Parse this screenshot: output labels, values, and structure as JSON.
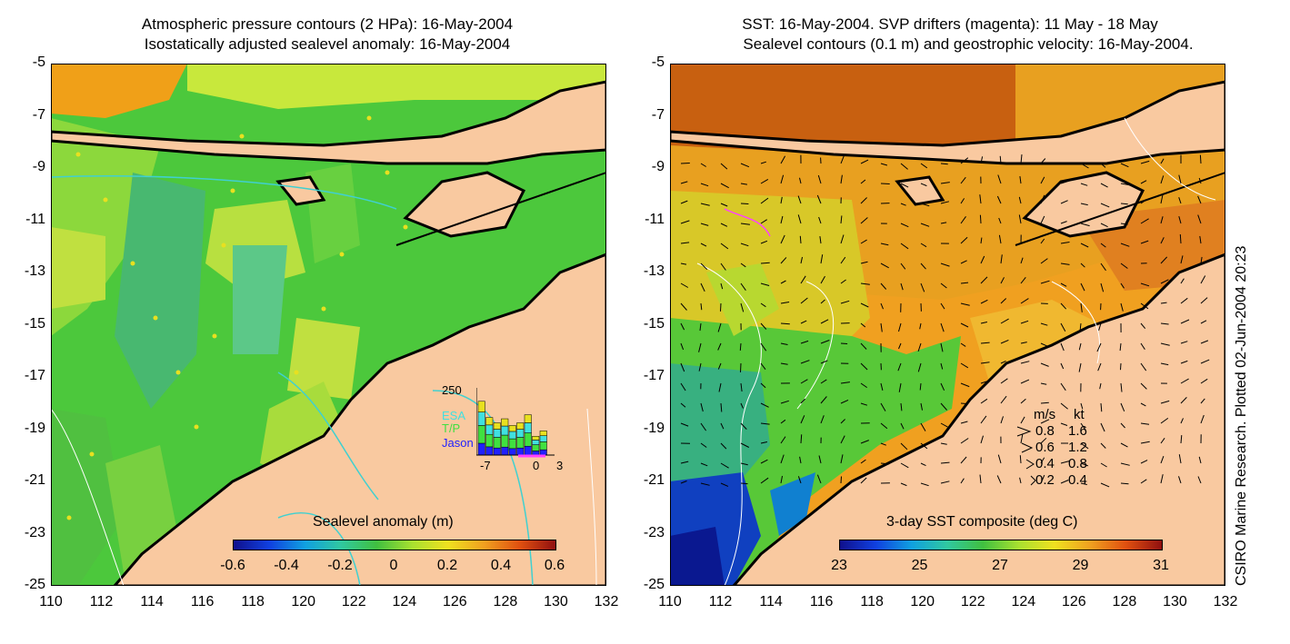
{
  "left_panel": {
    "title_line1": "Atmospheric pressure contours (2 HPa): 16-May-2004",
    "title_line2": "Isostatically adjusted sealevel anomaly: 16-May-2004",
    "colorbar": {
      "title": "Sealevel anomaly (m)",
      "labels": [
        "-0.6",
        "-0.4",
        "-0.2",
        "0",
        "0.2",
        "0.4",
        "0.6"
      ]
    },
    "inset": {
      "ymax_label": "250",
      "series": [
        {
          "name": "ESA",
          "color": "#40e0e0"
        },
        {
          "name": "T/P",
          "color": "#40e040"
        },
        {
          "name": "Jason",
          "color": "#2020ff"
        }
      ],
      "xlabels": [
        "-7",
        "0",
        "3"
      ],
      "bars": [
        200,
        140,
        120,
        135,
        110,
        120,
        150,
        70,
        90
      ]
    }
  },
  "right_panel": {
    "title_line1": "SST: 16-May-2004. SVP drifters (magenta): 11 May - 18 May",
    "title_line2": "Sealevel contours (0.1 m) and geostrophic velocity: 16-May-2004.",
    "colorbar": {
      "title": "3-day SST composite (deg C)",
      "labels": [
        "23",
        "25",
        "27",
        "29",
        "31"
      ]
    },
    "velocity_legend": {
      "header_ms": "m/s",
      "header_kt": "kt",
      "rows": [
        {
          "ms": "0.8",
          "kt": "1.6"
        },
        {
          "ms": "0.6",
          "kt": "1.2"
        },
        {
          "ms": "0.4",
          "kt": "0.8"
        },
        {
          "ms": "0.2",
          "kt": "0.4"
        }
      ]
    }
  },
  "axes": {
    "y_ticks": [
      "-5",
      "-7",
      "-9",
      "-11",
      "-13",
      "-15",
      "-17",
      "-19",
      "-21",
      "-23",
      "-25"
    ],
    "x_ticks": [
      "110",
      "112",
      "114",
      "116",
      "118",
      "120",
      "122",
      "124",
      "126",
      "128",
      "130",
      "132"
    ]
  },
  "credit": "CSIRO Marine Research. Plotted 02-Jun-2004 20:23",
  "colors": {
    "land": "#f9c9a0",
    "sla_ocean": "#4cc83c",
    "sst_ocean": "#f0a020"
  }
}
